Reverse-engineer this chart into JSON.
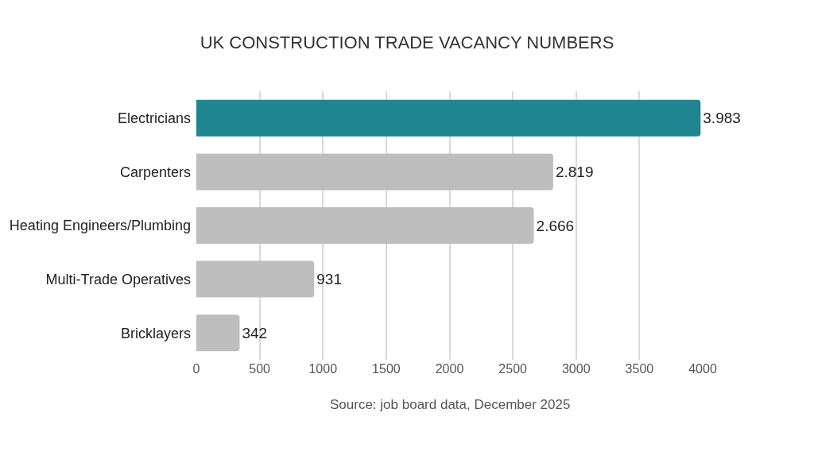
{
  "chart_data": {
    "type": "bar",
    "orientation": "horizontal",
    "title": "UK CONSTRUCTION TRADE VACANCY NUMBERS",
    "categories": [
      "Electricians",
      "Carpenters",
      "Heating Engineers/Plumbing",
      "Multi-Trade Operatives",
      "Bricklayers"
    ],
    "values": [
      3983,
      2819,
      2666,
      931,
      342
    ],
    "value_labels": [
      "3.983",
      "2.819",
      "2.666",
      "931",
      "342"
    ],
    "colors": [
      "#1f858f",
      "#bebebe",
      "#bebebe",
      "#bebebe",
      "#bebebe"
    ],
    "xlim": [
      0,
      4000
    ],
    "xticks": [
      0,
      500,
      1000,
      1500,
      2000,
      2500,
      3000,
      3500,
      4000
    ],
    "grid": "x",
    "annotations": [
      "Source: job board data, December 2025"
    ]
  }
}
